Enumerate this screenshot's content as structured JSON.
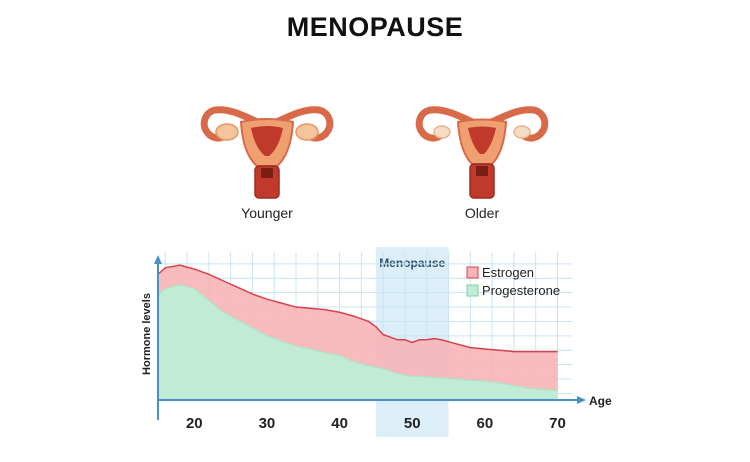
{
  "title": "MENOPAUSE",
  "illustrations": {
    "younger_label": "Younger",
    "older_label": "Older"
  },
  "colors": {
    "estrogen_fill": "#f7b4b7",
    "estrogen_line": "#d9424a",
    "progesterone_fill": "#bfedd6",
    "progesterone_line": "#a9e6c6",
    "menopause_band": "#dceef8",
    "grid": "#c9e4f3",
    "axis": "#4a90c8",
    "organ_body": "#f0a070",
    "organ_inner": "#c0392b"
  },
  "chart_data": {
    "type": "area",
    "xlabel": "Age",
    "ylabel": "Hormone levels",
    "xlim": [
      15,
      72
    ],
    "ylim": [
      0,
      11
    ],
    "xticks": [
      20,
      30,
      40,
      50,
      60,
      70
    ],
    "grid": true,
    "legend_position": "top-right",
    "highlight": {
      "label": "Menopause",
      "x_range": [
        45,
        55
      ]
    },
    "x": [
      15,
      16,
      18,
      20,
      22,
      24,
      26,
      28,
      30,
      32,
      34,
      36,
      38,
      40,
      42,
      44,
      45,
      46,
      47,
      48,
      49,
      50,
      51,
      52,
      53,
      54,
      56,
      58,
      60,
      62,
      64,
      66,
      68,
      70
    ],
    "series": [
      {
        "name": "Estrogen",
        "values": [
          9.6,
          10.1,
          10.3,
          10.0,
          9.6,
          9.1,
          8.6,
          8.1,
          7.7,
          7.4,
          7.1,
          7.0,
          6.9,
          6.7,
          6.4,
          6.0,
          5.6,
          5.0,
          4.8,
          4.6,
          4.6,
          4.4,
          4.6,
          4.6,
          4.7,
          4.6,
          4.3,
          4.0,
          3.9,
          3.8,
          3.7,
          3.7,
          3.7,
          3.7
        ]
      },
      {
        "name": "Progesterone",
        "values": [
          8.0,
          8.5,
          8.8,
          8.5,
          7.6,
          6.7,
          6.1,
          5.5,
          4.9,
          4.5,
          4.1,
          3.9,
          3.6,
          3.4,
          2.9,
          2.6,
          2.5,
          2.4,
          2.2,
          2.0,
          1.9,
          1.8,
          1.8,
          1.75,
          1.7,
          1.7,
          1.6,
          1.5,
          1.45,
          1.3,
          1.1,
          0.9,
          0.8,
          0.7
        ]
      }
    ]
  }
}
